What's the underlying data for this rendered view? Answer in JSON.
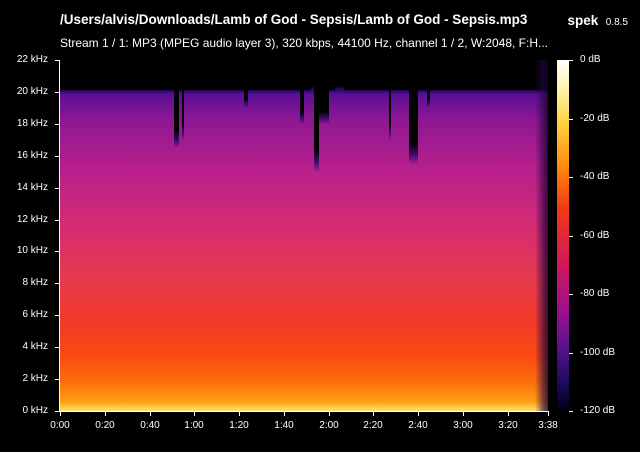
{
  "header": {
    "file_path": "/Users/alvis/Downloads/Lamb of God - Sepsis/Lamb of God - Sepsis.mp3",
    "app_name": "spek",
    "app_version": "0.8.5",
    "stream_info": "Stream 1 / 1: MP3 (MPEG audio layer 3), 320 kbps, 44100 Hz, channel 1 / 2, W:2048, F:H..."
  },
  "y_axis": {
    "labels": [
      "22 kHz",
      "20 kHz",
      "18 kHz",
      "16 kHz",
      "14 kHz",
      "12 kHz",
      "10 kHz",
      "8 kHz",
      "6 kHz",
      "4 kHz",
      "2 kHz",
      "0 kHz"
    ]
  },
  "x_axis": {
    "labels": [
      "0:00",
      "0:20",
      "0:40",
      "1:00",
      "1:20",
      "1:40",
      "2:00",
      "2:20",
      "2:40",
      "3:00",
      "3:20",
      "3:38"
    ],
    "duration_seconds": 218
  },
  "colorbar": {
    "labels": [
      "0 dB",
      "-20 dB",
      "-40 dB",
      "-60 dB",
      "-80 dB",
      "-100 dB",
      "-120 dB"
    ]
  },
  "spectrogram": {
    "max_freq_khz": 22,
    "cutoff_khz": 20,
    "dark_bands": [
      {
        "start_s": 51,
        "end_s": 53,
        "top_khz": 16.5
      },
      {
        "start_s": 54.5,
        "end_s": 55.5,
        "top_khz": 17
      },
      {
        "start_s": 82,
        "end_s": 84,
        "top_khz": 19
      },
      {
        "start_s": 107,
        "end_s": 109,
        "top_khz": 18
      },
      {
        "start_s": 112,
        "end_s": 113.5,
        "top_khz": 20
      },
      {
        "start_s": 113.5,
        "end_s": 115.5,
        "top_khz": 15
      },
      {
        "start_s": 115.5,
        "end_s": 120,
        "top_khz": 18
      },
      {
        "start_s": 123,
        "end_s": 127,
        "top_khz": 20
      },
      {
        "start_s": 147,
        "end_s": 148,
        "top_khz": 17
      },
      {
        "start_s": 156,
        "end_s": 160,
        "top_khz": 15.5
      },
      {
        "start_s": 164,
        "end_s": 165.5,
        "top_khz": 19
      }
    ]
  }
}
